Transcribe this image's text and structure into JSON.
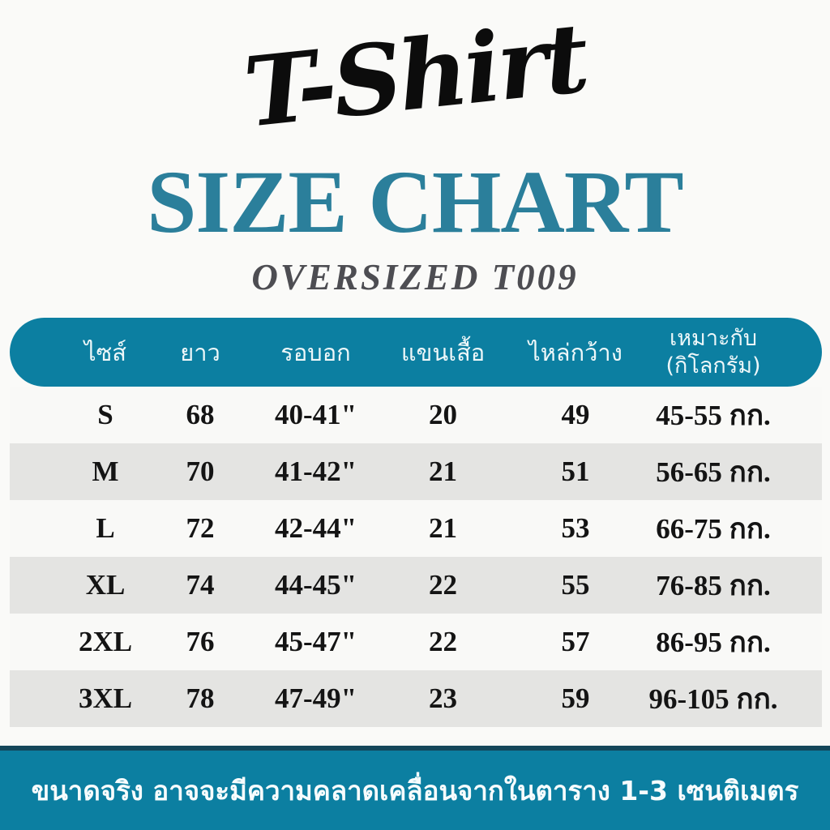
{
  "header": {
    "script_title": "T-Shirt",
    "title": "SIZE CHART",
    "subtitle": "OVERSIZED T009"
  },
  "table": {
    "columns": [
      {
        "label": "ไซส์"
      },
      {
        "label": "ยาว"
      },
      {
        "label": "รอบอก"
      },
      {
        "label": "แขนเสื้อ"
      },
      {
        "label": "ไหล่กว้าง"
      },
      {
        "label": "เหมาะกับ",
        "sublabel": "(กิโลกรัม)"
      }
    ],
    "rows": [
      {
        "size": "S",
        "length": "68",
        "chest": "40-41\"",
        "sleeve": "20",
        "shoulder": "49",
        "weight": "45-55 กก."
      },
      {
        "size": "M",
        "length": "70",
        "chest": "41-42\"",
        "sleeve": "21",
        "shoulder": "51",
        "weight": "56-65 กก."
      },
      {
        "size": "L",
        "length": "72",
        "chest": "42-44\"",
        "sleeve": "21",
        "shoulder": "53",
        "weight": "66-75 กก."
      },
      {
        "size": "XL",
        "length": "74",
        "chest": "44-45\"",
        "sleeve": "22",
        "shoulder": "55",
        "weight": "76-85 กก."
      },
      {
        "size": "2XL",
        "length": "76",
        "chest": "45-47\"",
        "sleeve": "22",
        "shoulder": "57",
        "weight": "86-95 กก."
      },
      {
        "size": "3XL",
        "length": "78",
        "chest": "47-49\"",
        "sleeve": "23",
        "shoulder": "59",
        "weight": "96-105 กก."
      }
    ]
  },
  "footer": {
    "note": "ขนาดจริง อาจจะมีความคลาดเคลื่อนจากในตาราง 1-3 เซนติเมตร"
  },
  "colors": {
    "teal": "#0C7FA1",
    "title_teal": "#2B7F9B",
    "row": "#F9F9F7",
    "row_alt": "#E4E4E2",
    "bg": "#FAFAF8"
  }
}
